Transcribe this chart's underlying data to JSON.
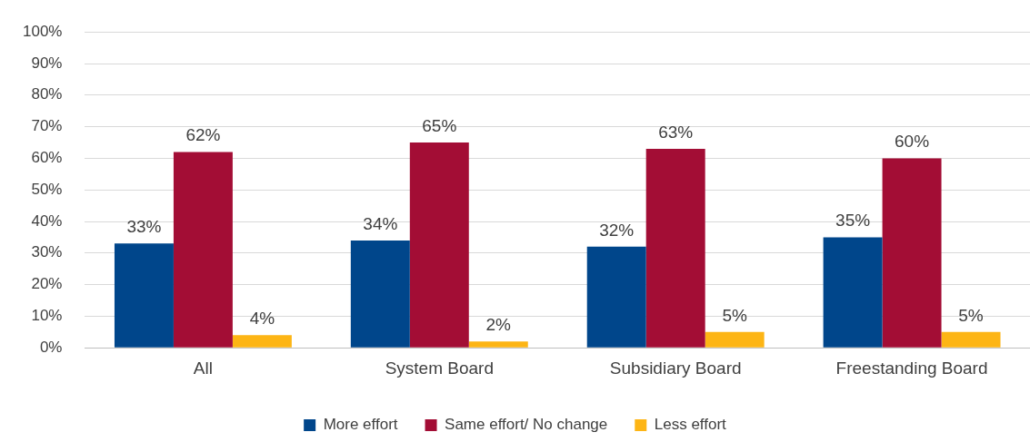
{
  "chart_data": {
    "type": "bar",
    "categories": [
      "All",
      "System Board",
      "Subsidiary Board",
      "Freestanding Board"
    ],
    "series": [
      {
        "name": "More effort",
        "color": "#00468b",
        "values": [
          33,
          34,
          32,
          35
        ],
        "value_labels": [
          "33%",
          "34%",
          "32%",
          "35%"
        ]
      },
      {
        "name": "Same effort/ No change",
        "color": "#a30d35",
        "values": [
          62,
          65,
          63,
          60
        ],
        "value_labels": [
          "62%",
          "65%",
          "63%",
          "60%"
        ]
      },
      {
        "name": "Less effort",
        "color": "#fdb515",
        "values": [
          4,
          2,
          5,
          5
        ],
        "value_labels": [
          "4%",
          "2%",
          "5%",
          "5%"
        ]
      }
    ],
    "ylim": [
      0,
      100
    ],
    "yticks": [
      {
        "value": 0,
        "label": "0%"
      },
      {
        "value": 10,
        "label": "10%"
      },
      {
        "value": 20,
        "label": "20%"
      },
      {
        "value": 30,
        "label": "30%"
      },
      {
        "value": 40,
        "label": "40%"
      },
      {
        "value": 50,
        "label": "50%"
      },
      {
        "value": 60,
        "label": "60%"
      },
      {
        "value": 70,
        "label": "70%"
      },
      {
        "value": 80,
        "label": "80%"
      },
      {
        "value": 90,
        "label": "90%"
      },
      {
        "value": 100,
        "label": "100%"
      }
    ],
    "grid": "y",
    "legend": "bottom"
  }
}
